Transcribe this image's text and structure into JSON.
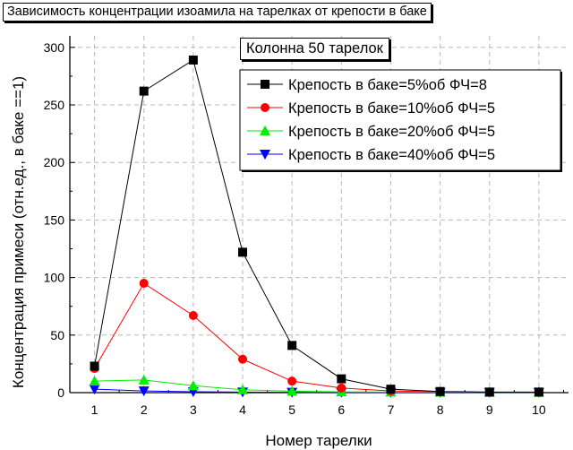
{
  "chart_data": {
    "type": "line",
    "title": "Зависимость концентрации изоамила на тарелках от крепости в баке",
    "subtitle": "Колонна 50 тарелок",
    "xlabel": "Номер тарелки",
    "ylabel": "Концентрация примеси (отн.ед., в баке ==1)",
    "xlim": [
      0.5,
      10.6
    ],
    "ylim": [
      0,
      310
    ],
    "xticks": [
      1,
      2,
      3,
      4,
      5,
      6,
      7,
      8,
      9,
      10
    ],
    "yticks": [
      0,
      50,
      100,
      150,
      200,
      250,
      300
    ],
    "grid": "dashed",
    "legend_position": "top-right",
    "x": [
      1,
      2,
      3,
      4,
      5,
      6,
      7,
      8,
      9,
      10
    ],
    "series": [
      {
        "name": "Крепость в баке=5%об ФЧ=8",
        "color": "#000000",
        "marker": "square",
        "values": [
          23,
          262,
          289,
          122,
          41,
          12,
          3,
          1,
          0.5,
          0.5
        ]
      },
      {
        "name": "Крепость в баке=10%об ФЧ=5",
        "color": "#ff0000",
        "marker": "circle",
        "values": [
          21,
          95,
          67,
          29,
          10,
          4,
          1.5,
          0.7,
          0.4,
          0.3
        ]
      },
      {
        "name": "Крепость в баке=20%об ФЧ=5",
        "color": "#00ee00",
        "marker": "triangle-up",
        "values": [
          10,
          11,
          6,
          2.5,
          1.3,
          0.7,
          0.5,
          0.4,
          0.3,
          0.3
        ]
      },
      {
        "name": "Крепость в баке=40%об ФЧ=5",
        "color": "#0000ff",
        "marker": "triangle-down",
        "values": [
          3,
          1.5,
          0.8,
          0.5,
          0.3,
          0.2,
          0.2,
          0.2,
          0.2,
          0.2
        ]
      }
    ]
  }
}
